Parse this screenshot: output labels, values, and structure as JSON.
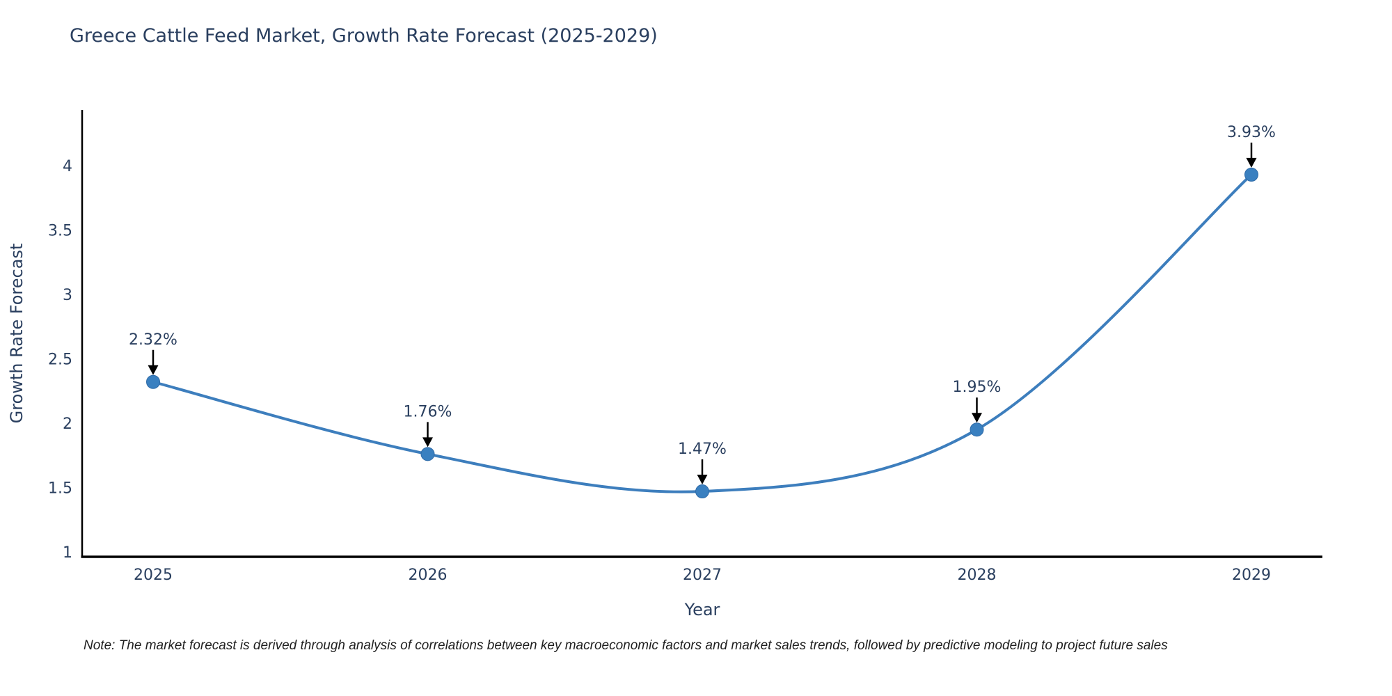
{
  "note": {
    "text": "Note: The market forecast is derived through analysis of correlations between key macroeconomic factors and market sales trends, followed by predictive modeling to project future sales"
  },
  "chart_data": {
    "type": "line",
    "title": "Greece Cattle Feed Market, Growth Rate Forecast (2025-2029)",
    "xlabel": "Year",
    "ylabel": "Growth Rate Forecast",
    "categories": [
      "2025",
      "2026",
      "2027",
      "2028",
      "2029"
    ],
    "values": [
      2.32,
      1.76,
      1.47,
      1.95,
      3.93
    ],
    "point_labels": [
      "2.32%",
      "1.76%",
      "1.47%",
      "1.95%",
      "3.93%"
    ],
    "yticks": {
      "values": [
        1,
        1.5,
        2,
        2.5,
        3,
        3.5,
        4
      ],
      "labels": [
        "1",
        "1.5",
        "2",
        "2.5",
        "3",
        "3.5",
        "4"
      ]
    },
    "ylim": [
      0.962,
      4.432
    ],
    "line_shape": "spline",
    "grid": false,
    "legend": "none",
    "colors": {
      "line": "#3d7ebd",
      "marker": "#3a80c0",
      "marker_edge": "#2f6ba8",
      "axis": "#000000",
      "text": "#2a3f5f",
      "annotation_arrow": "#000000"
    }
  }
}
